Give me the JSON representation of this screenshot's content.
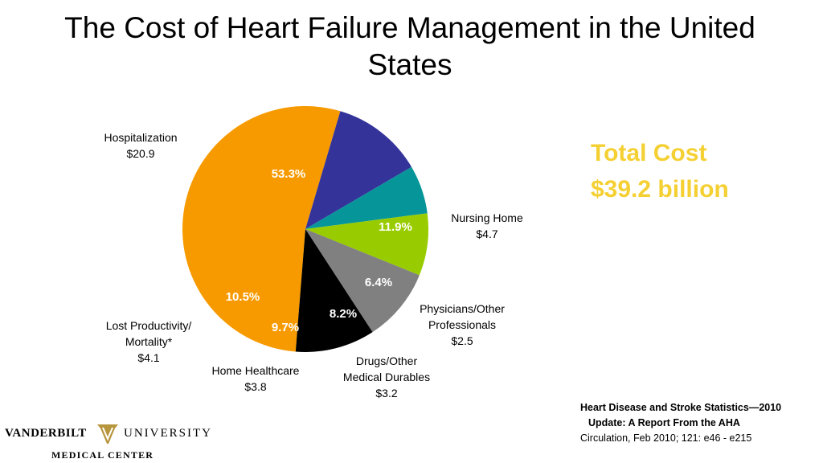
{
  "title": "The Cost of Heart Failure Management in the United States",
  "total": {
    "line1": "Total Cost",
    "line2": "$39.2 billion",
    "color": "#f5d033"
  },
  "chart_data": {
    "type": "pie",
    "slices": [
      {
        "label": "Hospitalization",
        "value_text": "$20.9",
        "value": 20.9,
        "percent_text": "53.3%",
        "percent": 53.3,
        "color": "#f79a00"
      },
      {
        "label": "Nursing Home",
        "value_text": "$4.7",
        "value": 4.7,
        "percent_text": "11.9%",
        "percent": 11.9,
        "color": "#34339a"
      },
      {
        "label": "Physicians/Other Professionals",
        "value_text": "$2.5",
        "value": 2.5,
        "percent_text": "6.4%",
        "percent": 6.4,
        "color": "#06969a"
      },
      {
        "label": "Drugs/Other Medical Durables",
        "value_text": "$3.2",
        "value": 3.2,
        "percent_text": "8.2%",
        "percent": 8.2,
        "color": "#99cc00"
      },
      {
        "label": "Home Healthcare",
        "value_text": "$3.8",
        "value": 3.8,
        "percent_text": "9.7%",
        "percent": 9.7,
        "color": "#808080"
      },
      {
        "label": "Lost Productivity/ Mortality*",
        "value_text": "$4.1",
        "value": 4.1,
        "percent_text": "10.5%",
        "percent": 10.5,
        "color": "#000000"
      }
    ]
  },
  "citation": {
    "line1": "Heart Disease and Stroke Statistics—2010",
    "line2": "Update: A Report From the AHA",
    "line3": "Circulation, Feb 2010; 121: e46 - e215"
  },
  "logo": {
    "word1": "VANDERBILT",
    "word2": "UNIVERSITY",
    "line2": "MEDICAL CENTER",
    "emblem_letter": "V",
    "gold": "#b8963e"
  }
}
